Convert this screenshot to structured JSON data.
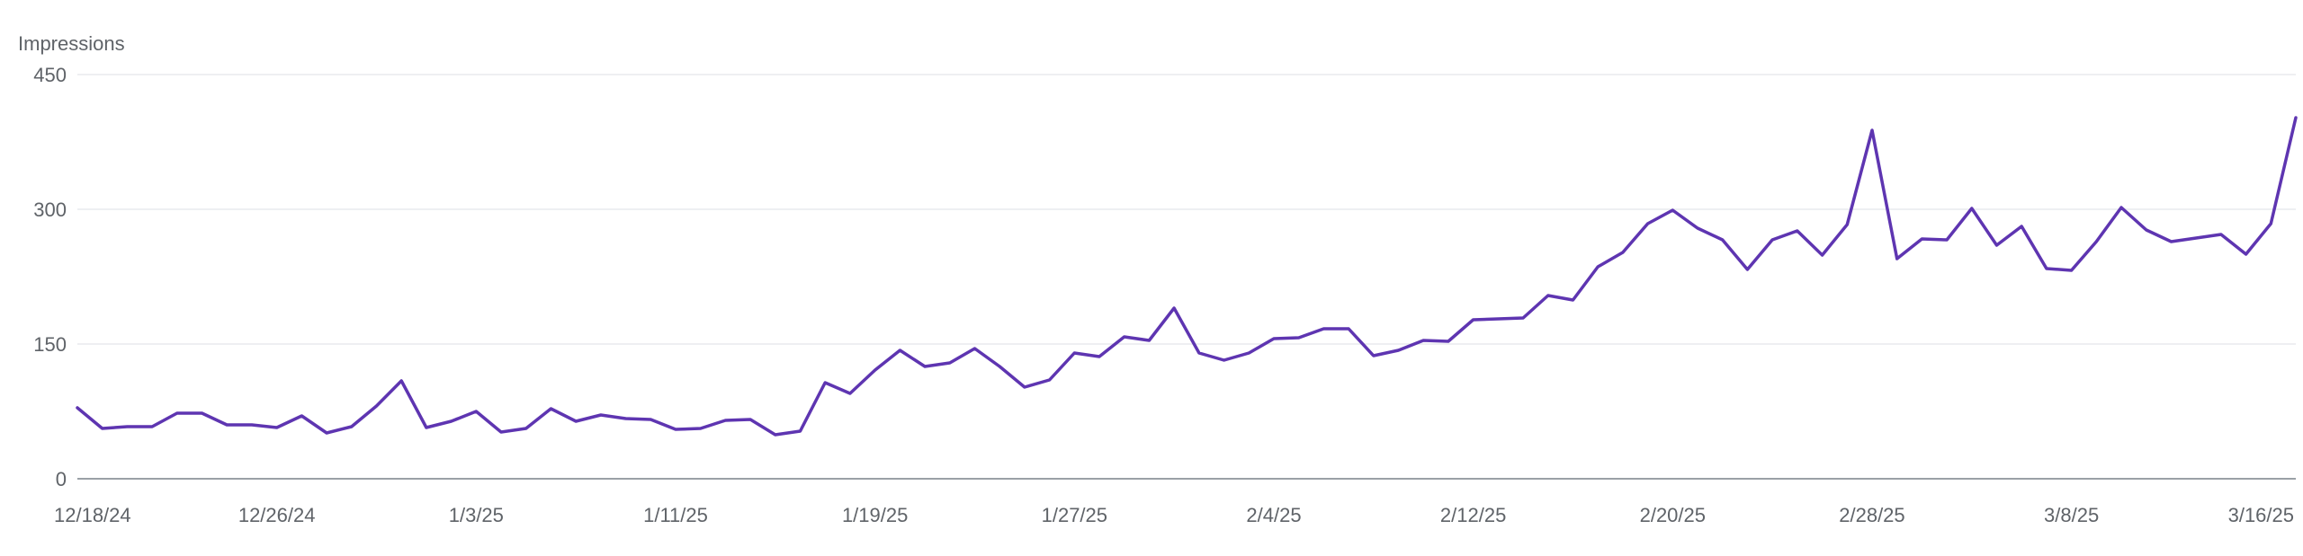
{
  "chart_data": {
    "type": "line",
    "ylabel": "Impressions",
    "ylim": [
      0,
      450
    ],
    "yticks": [
      0,
      150,
      300,
      450
    ],
    "xtick_labels": [
      "12/18/24",
      "12/26/24",
      "1/3/25",
      "1/11/25",
      "1/19/25",
      "1/27/25",
      "2/4/25",
      "2/12/25",
      "2/20/25",
      "2/28/25",
      "3/8/25",
      "3/16/25"
    ],
    "grid": true,
    "series": [
      {
        "color": "#5e35b1",
        "x": [
          "12/18/24",
          "12/19/24",
          "12/20/24",
          "12/21/24",
          "12/22/24",
          "12/23/24",
          "12/24/24",
          "12/25/24",
          "12/26/24",
          "12/27/24",
          "12/28/24",
          "12/29/24",
          "12/30/24",
          "12/31/24",
          "1/1/25",
          "1/2/25",
          "1/3/25",
          "1/4/25",
          "1/5/25",
          "1/6/25",
          "1/7/25",
          "1/8/25",
          "1/9/25",
          "1/10/25",
          "1/11/25",
          "1/12/25",
          "1/13/25",
          "1/14/25",
          "1/15/25",
          "1/16/25",
          "1/17/25",
          "1/18/25",
          "1/19/25",
          "1/20/25",
          "1/21/25",
          "1/22/25",
          "1/23/25",
          "1/24/25",
          "1/25/25",
          "1/26/25",
          "1/27/25",
          "1/28/25",
          "1/29/25",
          "1/30/25",
          "1/31/25",
          "2/1/25",
          "2/2/25",
          "2/3/25",
          "2/4/25",
          "2/5/25",
          "2/6/25",
          "2/7/25",
          "2/8/25",
          "2/9/25",
          "2/10/25",
          "2/11/25",
          "2/12/25",
          "2/13/25",
          "2/14/25",
          "2/15/25",
          "2/16/25",
          "2/17/25",
          "2/18/25",
          "2/19/25",
          "2/20/25",
          "2/21/25",
          "2/22/25",
          "2/23/25",
          "2/24/25",
          "2/25/25",
          "2/26/25",
          "2/27/25",
          "2/28/25",
          "3/1/25",
          "3/2/25",
          "3/3/25",
          "3/4/25",
          "3/5/25",
          "3/6/25",
          "3/7/25",
          "3/8/25",
          "3/9/25",
          "3/10/25",
          "3/11/25",
          "3/12/25",
          "3/13/25",
          "3/14/25",
          "3/15/25",
          "3/16/25",
          "3/17/25"
        ],
        "values": [
          79,
          56,
          58,
          58,
          73,
          73,
          60,
          60,
          57,
          70,
          51,
          58,
          81,
          109,
          57,
          64,
          75,
          52,
          56,
          78,
          64,
          71,
          67,
          66,
          55,
          56,
          65,
          66,
          49,
          53,
          107,
          95,
          121,
          143,
          125,
          129,
          145,
          125,
          102,
          110,
          140,
          136,
          158,
          154,
          190,
          140,
          132,
          140,
          156,
          157,
          167,
          167,
          137,
          143,
          154,
          153,
          177,
          178,
          179,
          204,
          199,
          236,
          252,
          284,
          299,
          279,
          266,
          233,
          266,
          276,
          249,
          283,
          388,
          245,
          267,
          266,
          301,
          260,
          281,
          234,
          232,
          264,
          302,
          277,
          264,
          268,
          272,
          250,
          284,
          402
        ]
      }
    ]
  }
}
